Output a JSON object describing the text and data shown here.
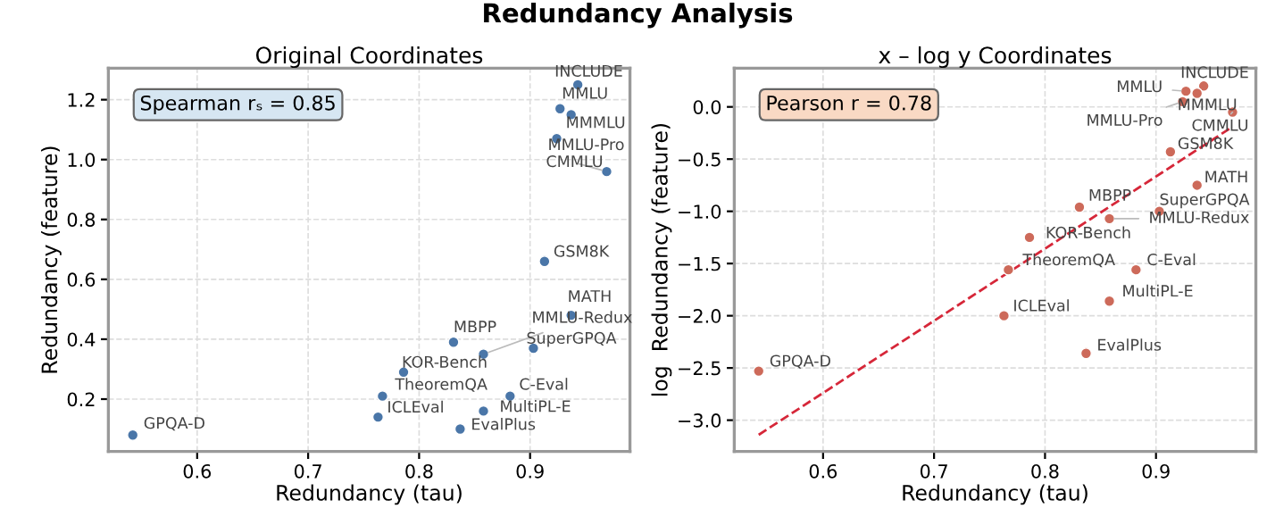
{
  "chart_data": [
    {
      "type": "scatter",
      "title": "Redundancy Analysis",
      "subtitle": "Original Coordinates",
      "xlabel": "Redundancy (tau)",
      "ylabel": "Redundancy (feature)",
      "xlim": [
        0.52,
        0.99
      ],
      "ylim": [
        0.025,
        1.305
      ],
      "xticks": [
        0.6,
        0.7,
        0.8,
        0.9
      ],
      "yticks": [
        0.2,
        0.4,
        0.6,
        0.8,
        {
          "value": 1.0,
          "label": "1.0"
        },
        1.2
      ],
      "grid": true,
      "marker": "circle",
      "series": [
        {
          "color": "#4a76a8",
          "x": [
            0.943,
            0.927,
            0.937,
            0.924,
            0.969,
            0.913,
            0.937,
            0.858,
            0.903,
            0.831,
            0.786,
            0.767,
            0.882,
            0.763,
            0.858,
            0.837,
            0.542
          ],
          "values": [
            1.25,
            1.17,
            1.15,
            1.07,
            0.96,
            0.66,
            0.48,
            0.35,
            0.37,
            0.39,
            0.29,
            0.21,
            0.21,
            0.14,
            0.16,
            0.1,
            0.08
          ]
        }
      ],
      "annotations": [
        "Spearman rₛ = 0.85",
        {
          "text": "INCLUDE",
          "x": 0.943,
          "y": 1.25
        },
        {
          "text": "MMLU",
          "x": 0.927,
          "y": 1.17
        },
        {
          "text": "MMMLU",
          "x": 0.937,
          "y": 1.15
        },
        {
          "text": "MMLU-Pro",
          "x": 0.924,
          "y": 1.07
        },
        {
          "text": "CMMLU",
          "x": 0.969,
          "y": 0.96
        },
        {
          "text": "GSM8K",
          "x": 0.913,
          "y": 0.66
        },
        {
          "text": "MATH",
          "x": 0.937,
          "y": 0.48
        },
        {
          "text": "MMLU-Redux",
          "x": 0.858,
          "y": 0.35
        },
        {
          "text": "SuperGPQA",
          "x": 0.903,
          "y": 0.37
        },
        {
          "text": "MBPP",
          "x": 0.831,
          "y": 0.39
        },
        {
          "text": "KOR-Bench",
          "x": 0.786,
          "y": 0.29
        },
        {
          "text": "TheoremQA",
          "x": 0.767,
          "y": 0.21
        },
        {
          "text": "C-Eval",
          "x": 0.882,
          "y": 0.21
        },
        {
          "text": "ICLEval",
          "x": 0.763,
          "y": 0.14
        },
        {
          "text": "MultiPL-E",
          "x": 0.858,
          "y": 0.16
        },
        {
          "text": "EvalPlus",
          "x": 0.837,
          "y": 0.1
        },
        {
          "text": "GPQA-D",
          "x": 0.542,
          "y": 0.08
        }
      ]
    },
    {
      "type": "scatter",
      "title": "x – log y Coordinates",
      "xlabel": "Redundancy (tau)",
      "ylabel": "log  Redundancy (feature)",
      "xlim": [
        0.52,
        0.99
      ],
      "ylim": [
        -3.3,
        0.37
      ],
      "xticks": [
        0.6,
        0.7,
        0.8,
        0.9
      ],
      "yticks": [
        {
          "value": -3.0,
          "label": "−3.0"
        },
        {
          "value": -2.5,
          "label": "−2.5"
        },
        {
          "value": -2.0,
          "label": "−2.0"
        },
        {
          "value": -1.5,
          "label": "−1.5"
        },
        {
          "value": -1.0,
          "label": "−1.0"
        },
        {
          "value": -0.5,
          "label": "−0.5"
        },
        {
          "value": 0.0,
          "label": "0.0"
        }
      ],
      "grid": true,
      "marker": "circle",
      "series": [
        {
          "color": "#cd6a5a",
          "x": [
            0.943,
            0.927,
            0.937,
            0.924,
            0.969,
            0.913,
            0.937,
            0.858,
            0.903,
            0.831,
            0.786,
            0.767,
            0.882,
            0.763,
            0.858,
            0.837,
            0.542
          ],
          "values": [
            0.2,
            0.15,
            0.13,
            0.05,
            -0.05,
            -0.43,
            -0.75,
            -1.07,
            -1.0,
            -0.96,
            -1.25,
            -1.56,
            -1.56,
            -2.0,
            -1.86,
            -2.36,
            -2.53
          ]
        },
        {
          "type": "line",
          "color": "#d62739",
          "line_style": "dashed",
          "marker": "none",
          "x": [
            0.542,
            0.969
          ],
          "values": [
            -3.14,
            -0.19
          ]
        }
      ],
      "annotations": [
        "Pearson r = 0.78",
        {
          "text": "INCLUDE",
          "x": 0.943,
          "y": 0.2
        },
        {
          "text": "MMLU",
          "x": 0.927,
          "y": 0.15
        },
        {
          "text": "MMMLU",
          "x": 0.937,
          "y": 0.13
        },
        {
          "text": "MMLU-Pro",
          "x": 0.924,
          "y": 0.05
        },
        {
          "text": "CMMLU",
          "x": 0.969,
          "y": -0.05
        },
        {
          "text": "GSM8K",
          "x": 0.913,
          "y": -0.43
        },
        {
          "text": "MATH",
          "x": 0.937,
          "y": -0.75
        },
        {
          "text": "MMLU-Redux",
          "x": 0.858,
          "y": -1.07
        },
        {
          "text": "SuperGPQA",
          "x": 0.903,
          "y": -1.0
        },
        {
          "text": "MBPP",
          "x": 0.831,
          "y": -0.96
        },
        {
          "text": "KOR-Bench",
          "x": 0.786,
          "y": -1.25
        },
        {
          "text": "TheoremQA",
          "x": 0.767,
          "y": -1.56
        },
        {
          "text": "C-Eval",
          "x": 0.882,
          "y": -1.56
        },
        {
          "text": "MultiPL-E",
          "x": 0.858,
          "y": -1.86
        },
        {
          "text": "ICLEval",
          "x": 0.763,
          "y": -2.0
        },
        {
          "text": "EvalPlus",
          "x": 0.837,
          "y": -2.36
        },
        {
          "text": "GPQA-D",
          "x": 0.542,
          "y": -2.53
        }
      ]
    }
  ]
}
